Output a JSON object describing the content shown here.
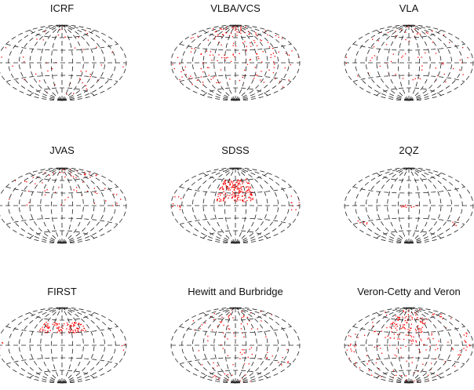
{
  "chart_data": {
    "type": "scatter",
    "projection": "aitoff",
    "grid": true,
    "point_color": "#ff0000",
    "panels": [
      {
        "title": "ICRF",
        "coverage": [
          {
            "lon": [
              -180,
              180
            ],
            "lat": [
              -90,
              90
            ],
            "density": 0.45
          }
        ]
      },
      {
        "title": "VLBA/VCS",
        "coverage": [
          {
            "lon": [
              -180,
              180
            ],
            "lat": [
              -45,
              90
            ],
            "density": 2.2
          }
        ]
      },
      {
        "title": "VLA",
        "coverage": [
          {
            "lon": [
              -180,
              180
            ],
            "lat": [
              -40,
              90
            ],
            "density": 0.9
          }
        ]
      },
      {
        "title": "JVAS",
        "coverage": [
          {
            "lon": [
              -180,
              180
            ],
            "lat": [
              0,
              90
            ],
            "density": 1.1
          }
        ]
      },
      {
        "title": "SDSS",
        "coverage": [
          {
            "lon": [
              -55,
              55
            ],
            "lat": [
              10,
              65
            ],
            "density": 20
          },
          {
            "lon": [
              -180,
              -155
            ],
            "lat": [
              -8,
              18
            ],
            "density": 8
          },
          {
            "lon": [
              155,
              180
            ],
            "lat": [
              -8,
              18
            ],
            "density": 8
          }
        ]
      },
      {
        "title": "2QZ",
        "coverage": [
          {
            "lon": [
              -25,
              25
            ],
            "lat": [
              -3,
              3
            ],
            "density": 25
          },
          {
            "lon": [
              -160,
              -130
            ],
            "lat": [
              -35,
              -25
            ],
            "density": 12
          },
          {
            "lon": [
              130,
              160
            ],
            "lat": [
              -35,
              -25
            ],
            "density": 12
          }
        ]
      },
      {
        "title": "FIRST",
        "coverage": [
          {
            "lon": [
              -75,
              75
            ],
            "lat": [
              30,
              55
            ],
            "density": 18
          },
          {
            "lon": [
              -180,
              -165
            ],
            "lat": [
              -8,
              8
            ],
            "density": 10
          },
          {
            "lon": [
              165,
              180
            ],
            "lat": [
              -8,
              8
            ],
            "density": 10
          }
        ]
      },
      {
        "title": "Hewitt and Burbridge",
        "coverage": [
          {
            "lon": [
              -180,
              180
            ],
            "lat": [
              -90,
              90
            ],
            "density": 0.7
          },
          {
            "lon": [
              -70,
              70
            ],
            "lat": [
              15,
              70
            ],
            "density": 1.5
          },
          {
            "lon": [
              -60,
              60
            ],
            "lat": [
              -10,
              5
            ],
            "density": 1.8
          }
        ]
      },
      {
        "title": "Veron-Cetty and Veron",
        "coverage": [
          {
            "lon": [
              -180,
              180
            ],
            "lat": [
              -90,
              90
            ],
            "density": 1.0
          },
          {
            "lon": [
              -70,
              70
            ],
            "lat": [
              10,
              75
            ],
            "density": 6
          },
          {
            "lon": [
              -80,
              80
            ],
            "lat": [
              -10,
              5
            ],
            "density": 3
          },
          {
            "lon": [
              -180,
              -140
            ],
            "lat": [
              -60,
              20
            ],
            "density": 3
          },
          {
            "lon": [
              140,
              180
            ],
            "lat": [
              -60,
              20
            ],
            "density": 3
          }
        ]
      }
    ]
  }
}
